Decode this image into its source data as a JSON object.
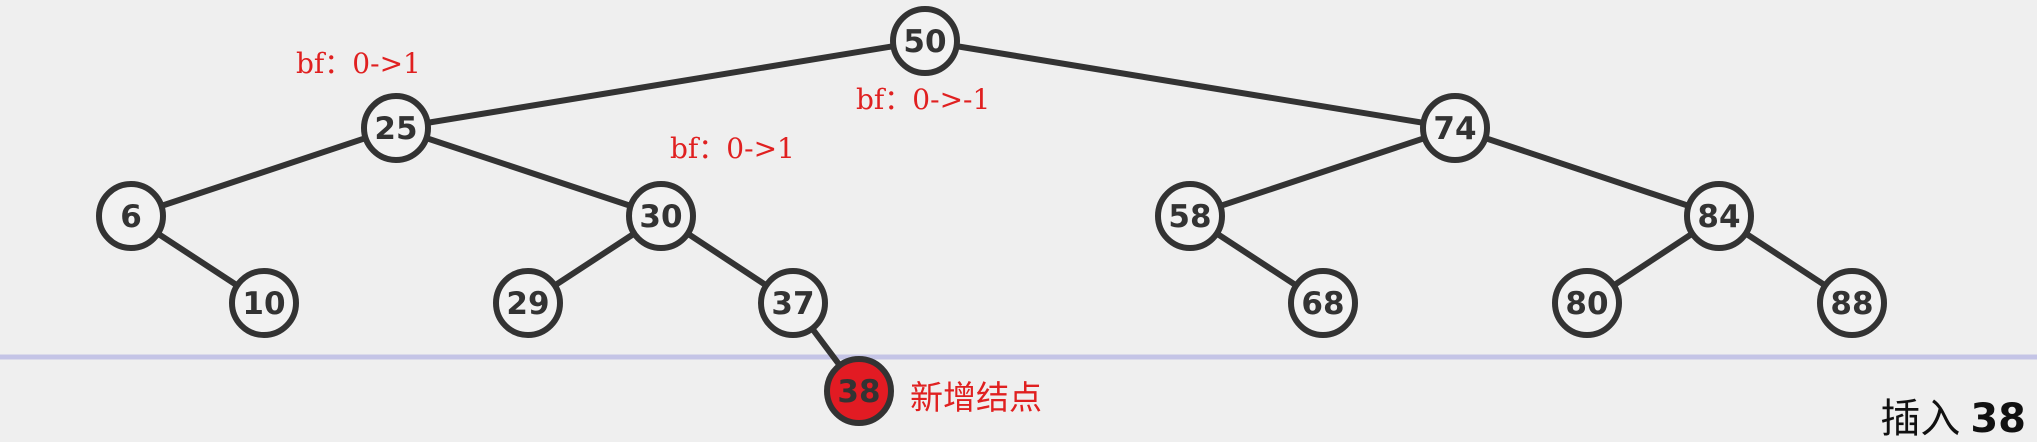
{
  "tree": {
    "nodes": [
      {
        "id": "n50",
        "label": "50"
      },
      {
        "id": "n25",
        "label": "25"
      },
      {
        "id": "n74",
        "label": "74"
      },
      {
        "id": "n6",
        "label": "6"
      },
      {
        "id": "n30",
        "label": "30"
      },
      {
        "id": "n58",
        "label": "58"
      },
      {
        "id": "n84",
        "label": "84"
      },
      {
        "id": "n10",
        "label": "10"
      },
      {
        "id": "n29",
        "label": "29"
      },
      {
        "id": "n37",
        "label": "37"
      },
      {
        "id": "n68",
        "label": "68"
      },
      {
        "id": "n80",
        "label": "80"
      },
      {
        "id": "n88",
        "label": "88"
      },
      {
        "id": "n38",
        "label": "38",
        "new": true
      }
    ],
    "edges": [
      [
        "n50",
        "n25"
      ],
      [
        "n50",
        "n74"
      ],
      [
        "n25",
        "n6"
      ],
      [
        "n25",
        "n30"
      ],
      [
        "n6",
        "n10"
      ],
      [
        "n30",
        "n29"
      ],
      [
        "n30",
        "n37"
      ],
      [
        "n37",
        "n38"
      ],
      [
        "n74",
        "n58"
      ],
      [
        "n74",
        "n84"
      ],
      [
        "n58",
        "n68"
      ],
      [
        "n84",
        "n80"
      ],
      [
        "n84",
        "n88"
      ]
    ]
  },
  "annotations": {
    "bf_25": "bf：0->1",
    "bf_50": "bf：0->-1",
    "bf_30": "bf：0->1",
    "new_node_note": "新增结点"
  },
  "caption": {
    "prefix": "插入",
    "value": "38"
  },
  "colors": {
    "node_border": "#333333",
    "new_node_fill": "#e21b23",
    "annotation": "#e02020",
    "baseline": "#c4c4e6"
  }
}
